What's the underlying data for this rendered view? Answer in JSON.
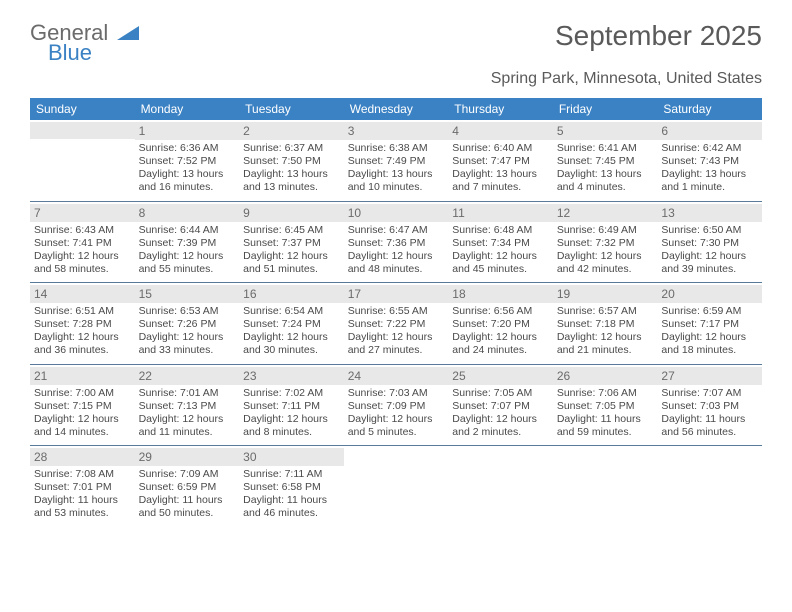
{
  "logo": {
    "text1": "General",
    "text2": "Blue",
    "color1": "#6b6b6b",
    "color2": "#3b82c4"
  },
  "title": "September 2025",
  "subtitle": "Spring Park, Minnesota, United States",
  "colors": {
    "header_bg": "#3b82c4",
    "header_text": "#ffffff",
    "daynum_bg": "#e8e8e8",
    "daynum_text": "#6b6b6b",
    "body_text": "#4a4a4a",
    "rule": "#5a7a99",
    "title_text": "#5a5a5a"
  },
  "fontsizes": {
    "title": 28,
    "subtitle": 16,
    "dow": 12,
    "daynum": 12,
    "body": 10.5
  },
  "days_of_week": [
    "Sunday",
    "Monday",
    "Tuesday",
    "Wednesday",
    "Thursday",
    "Friday",
    "Saturday"
  ],
  "weeks": [
    [
      null,
      {
        "n": "1",
        "sunrise": "6:36 AM",
        "sunset": "7:52 PM",
        "daylight": "13 hours and 16 minutes."
      },
      {
        "n": "2",
        "sunrise": "6:37 AM",
        "sunset": "7:50 PM",
        "daylight": "13 hours and 13 minutes."
      },
      {
        "n": "3",
        "sunrise": "6:38 AM",
        "sunset": "7:49 PM",
        "daylight": "13 hours and 10 minutes."
      },
      {
        "n": "4",
        "sunrise": "6:40 AM",
        "sunset": "7:47 PM",
        "daylight": "13 hours and 7 minutes."
      },
      {
        "n": "5",
        "sunrise": "6:41 AM",
        "sunset": "7:45 PM",
        "daylight": "13 hours and 4 minutes."
      },
      {
        "n": "6",
        "sunrise": "6:42 AM",
        "sunset": "7:43 PM",
        "daylight": "13 hours and 1 minute."
      }
    ],
    [
      {
        "n": "7",
        "sunrise": "6:43 AM",
        "sunset": "7:41 PM",
        "daylight": "12 hours and 58 minutes."
      },
      {
        "n": "8",
        "sunrise": "6:44 AM",
        "sunset": "7:39 PM",
        "daylight": "12 hours and 55 minutes."
      },
      {
        "n": "9",
        "sunrise": "6:45 AM",
        "sunset": "7:37 PM",
        "daylight": "12 hours and 51 minutes."
      },
      {
        "n": "10",
        "sunrise": "6:47 AM",
        "sunset": "7:36 PM",
        "daylight": "12 hours and 48 minutes."
      },
      {
        "n": "11",
        "sunrise": "6:48 AM",
        "sunset": "7:34 PM",
        "daylight": "12 hours and 45 minutes."
      },
      {
        "n": "12",
        "sunrise": "6:49 AM",
        "sunset": "7:32 PM",
        "daylight": "12 hours and 42 minutes."
      },
      {
        "n": "13",
        "sunrise": "6:50 AM",
        "sunset": "7:30 PM",
        "daylight": "12 hours and 39 minutes."
      }
    ],
    [
      {
        "n": "14",
        "sunrise": "6:51 AM",
        "sunset": "7:28 PM",
        "daylight": "12 hours and 36 minutes."
      },
      {
        "n": "15",
        "sunrise": "6:53 AM",
        "sunset": "7:26 PM",
        "daylight": "12 hours and 33 minutes."
      },
      {
        "n": "16",
        "sunrise": "6:54 AM",
        "sunset": "7:24 PM",
        "daylight": "12 hours and 30 minutes."
      },
      {
        "n": "17",
        "sunrise": "6:55 AM",
        "sunset": "7:22 PM",
        "daylight": "12 hours and 27 minutes."
      },
      {
        "n": "18",
        "sunrise": "6:56 AM",
        "sunset": "7:20 PM",
        "daylight": "12 hours and 24 minutes."
      },
      {
        "n": "19",
        "sunrise": "6:57 AM",
        "sunset": "7:18 PM",
        "daylight": "12 hours and 21 minutes."
      },
      {
        "n": "20",
        "sunrise": "6:59 AM",
        "sunset": "7:17 PM",
        "daylight": "12 hours and 18 minutes."
      }
    ],
    [
      {
        "n": "21",
        "sunrise": "7:00 AM",
        "sunset": "7:15 PM",
        "daylight": "12 hours and 14 minutes."
      },
      {
        "n": "22",
        "sunrise": "7:01 AM",
        "sunset": "7:13 PM",
        "daylight": "12 hours and 11 minutes."
      },
      {
        "n": "23",
        "sunrise": "7:02 AM",
        "sunset": "7:11 PM",
        "daylight": "12 hours and 8 minutes."
      },
      {
        "n": "24",
        "sunrise": "7:03 AM",
        "sunset": "7:09 PM",
        "daylight": "12 hours and 5 minutes."
      },
      {
        "n": "25",
        "sunrise": "7:05 AM",
        "sunset": "7:07 PM",
        "daylight": "12 hours and 2 minutes."
      },
      {
        "n": "26",
        "sunrise": "7:06 AM",
        "sunset": "7:05 PM",
        "daylight": "11 hours and 59 minutes."
      },
      {
        "n": "27",
        "sunrise": "7:07 AM",
        "sunset": "7:03 PM",
        "daylight": "11 hours and 56 minutes."
      }
    ],
    [
      {
        "n": "28",
        "sunrise": "7:08 AM",
        "sunset": "7:01 PM",
        "daylight": "11 hours and 53 minutes."
      },
      {
        "n": "29",
        "sunrise": "7:09 AM",
        "sunset": "6:59 PM",
        "daylight": "11 hours and 50 minutes."
      },
      {
        "n": "30",
        "sunrise": "7:11 AM",
        "sunset": "6:58 PM",
        "daylight": "11 hours and 46 minutes."
      },
      null,
      null,
      null,
      null
    ]
  ],
  "labels": {
    "sunrise": "Sunrise:",
    "sunset": "Sunset:",
    "daylight": "Daylight:"
  }
}
